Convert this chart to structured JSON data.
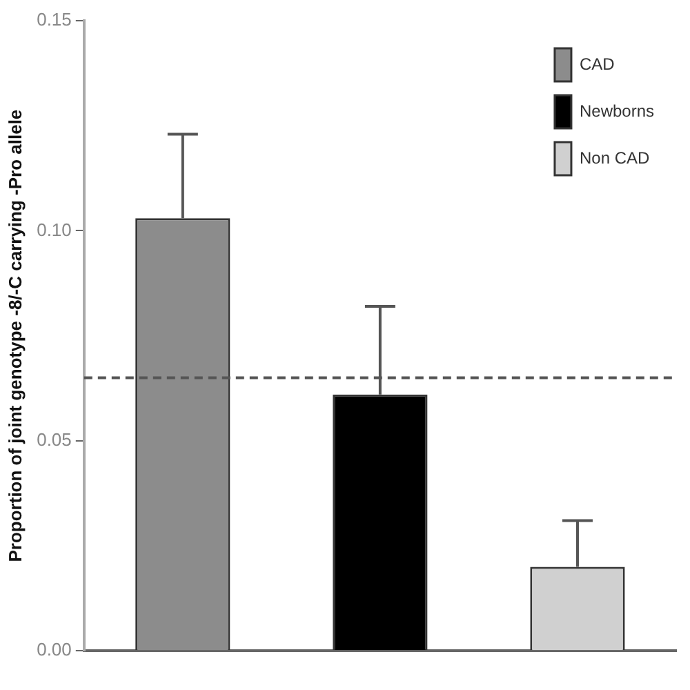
{
  "chart_data": {
    "type": "bar",
    "ylabel": "Proportion of joint genotype -8/-C carrying -Pro allele",
    "categories": [
      null,
      null,
      null
    ],
    "series": [
      {
        "name": "CAD",
        "color": "#8c8c8c",
        "values": [
          0.103,
          null,
          null
        ],
        "errors": [
          [
            0.103,
            0.123
          ],
          null,
          null
        ]
      },
      {
        "name": "Newborns",
        "color": "#000000",
        "values": [
          null,
          0.061,
          null
        ],
        "errors": [
          null,
          [
            0.061,
            0.082
          ],
          null
        ]
      },
      {
        "name": "Non CAD",
        "color": "#d0d0d0",
        "values": [
          null,
          null,
          0.02
        ],
        "errors": [
          null,
          null,
          [
            0.02,
            0.031
          ]
        ]
      }
    ],
    "ylim": [
      0,
      0.15
    ],
    "yticks": [
      {
        "value": 0,
        "label": "0.00"
      },
      {
        "value": 0.05,
        "label": "0.05"
      },
      {
        "value": 0.1,
        "label": "0.10"
      },
      {
        "value": 0.15,
        "label": "0.15"
      }
    ],
    "ref_lines": [
      {
        "axis": "y",
        "value": 0.065,
        "color": "#555555",
        "line_style": "dashed"
      }
    ],
    "grid": false,
    "legend": "top right"
  }
}
